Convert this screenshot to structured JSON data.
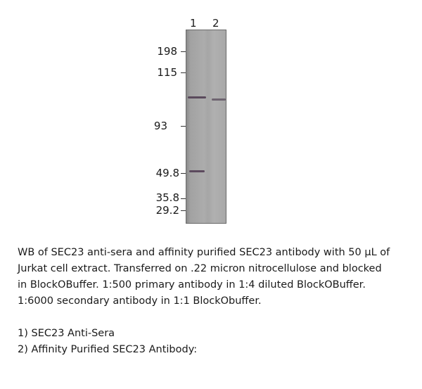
{
  "lanes": [
    "1",
    "2"
  ],
  "markers": [
    "198",
    "115",
    "93",
    "49.8",
    "35.8",
    "29.2"
  ],
  "caption": [
    "WB of SEC23 anti-sera and affinity purified SEC23 antibody with 50 µL of",
    "Jurkat cell extract. Transferred on .22 micron nitrocellulose and blocked",
    "in BlockOBuffer.  1:500 primary antibody in 1:4 diluted BlockOBuffer.",
    "1:6000 secondary antibody in 1:1 BlockObuffer."
  ],
  "legend": [
    "1) SEC23 Anti-Sera",
    "2) Affinity Purified SEC23 Antibody:"
  ]
}
